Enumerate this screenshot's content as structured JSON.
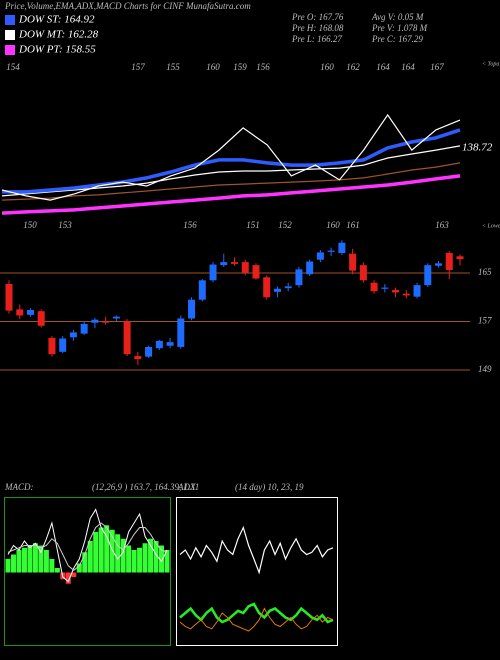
{
  "header": {
    "title": "Price,Volume,EMA,ADX,MACD Charts for CINF MunafaSutra.com",
    "legend": [
      {
        "text": "DOW ST: 164.92",
        "color": "#2f5cff"
      },
      {
        "text": "DOW MT: 162.28",
        "color": "#ffffff"
      },
      {
        "text": "DOW PT: 158.55",
        "color": "#ff33ff"
      }
    ],
    "stats": [
      "Pre   O: 167.76",
      "Avg  V: 0.05  M",
      "Pre   H: 168.08",
      "Pre   V: 1.078  M",
      "Pre   L: 166.27",
      "Pre   C: 167.29"
    ]
  },
  "chart_data": [
    {
      "type": "line",
      "ylim": [
        110,
        175
      ],
      "annotations": [
        "154",
        "157",
        "155",
        "160",
        "159",
        "156",
        "160",
        "162",
        "164",
        "164",
        "167"
      ],
      "corner_label": "< Topa",
      "last_label": "138.72",
      "series": [
        {
          "color": "#ff33ff",
          "width": 3.5,
          "values": [
            112.8,
            113.3,
            113.7,
            114.1,
            114.9,
            115.7,
            116.5,
            117.3,
            118.1,
            118.9,
            119.8,
            120.2,
            121.0,
            121.8,
            122.6,
            123.4,
            124.2,
            125.4,
            126.7,
            127.9
          ]
        },
        {
          "color": "#a0522d",
          "width": 1.2,
          "values": [
            118.1,
            118.5,
            118.9,
            119.8,
            120.2,
            121.0,
            121.8,
            122.6,
            123.4,
            124.2,
            124.6,
            125.0,
            125.4,
            125.8,
            126.3,
            127.1,
            128.7,
            130.3,
            131.5,
            133.2
          ]
        },
        {
          "color": "#ffffff",
          "width": 1.2,
          "values": [
            119.8,
            120.6,
            121.4,
            122.2,
            123.0,
            123.8,
            125.0,
            126.7,
            128.3,
            129.5,
            129.9,
            129.9,
            130.3,
            130.7,
            131.1,
            132.3,
            135.2,
            136.8,
            138.4,
            140.1
          ]
        },
        {
          "color": "#2f5cff",
          "width": 3.5,
          "values": [
            121.4,
            121.4,
            122.2,
            123.0,
            124.2,
            125.4,
            127.1,
            129.5,
            132.3,
            134.4,
            134.4,
            133.2,
            132.3,
            132.3,
            133.2,
            134.4,
            139.3,
            141.7,
            143.4,
            146.6
          ]
        },
        {
          "color": "#ffffff",
          "width": 1.2,
          "values": [
            122.2,
            119.8,
            118.1,
            120.6,
            123.8,
            125.4,
            123.8,
            127.9,
            131.1,
            138.4,
            147.4,
            140.5,
            127.9,
            132.3,
            126.3,
            138.4,
            152.7,
            138.4,
            146.6,
            150.6
          ]
        }
      ]
    },
    {
      "type": "candlestick",
      "ylim": [
        147.35,
        172.1
      ],
      "yticks": [
        165,
        157,
        149
      ],
      "annotations": [
        "150",
        "153",
        "156",
        "151",
        "152",
        "160",
        "161",
        "163"
      ],
      "corner_label": "< Lower",
      "up_color": "#1e6bff",
      "down_color": "#e8201c",
      "grid_color": "#a0522d",
      "open": [
        163.2,
        159.0,
        158.1,
        158.7,
        154.3,
        152.0,
        154.4,
        155.0,
        156.8,
        157.0,
        157.5,
        157.0,
        151.3,
        151.2,
        152.6,
        153.0,
        152.8,
        157.5,
        160.6,
        163.8,
        166.3,
        166.8,
        166.8,
        166.3,
        164.3,
        161.9,
        162.5,
        163.0,
        164.8,
        167.2,
        168.5,
        168.3,
        168.2,
        166.3,
        163.4,
        162.4,
        162.2,
        161.6,
        161.1,
        163.0,
        166.2,
        168.3,
        167.76
      ],
      "high": [
        163.8,
        159.8,
        159.2,
        159.0,
        154.6,
        154.6,
        155.6,
        157.0,
        157.6,
        157.8,
        158.0,
        157.4,
        152.0,
        153.0,
        154.0,
        154.3,
        158.0,
        161.0,
        164.0,
        166.8,
        168.2,
        167.6,
        167.2,
        166.6,
        164.6,
        162.8,
        163.4,
        166.0,
        167.2,
        168.8,
        169.2,
        170.4,
        169.0,
        166.8,
        163.8,
        163.2,
        162.6,
        162.2,
        163.4,
        166.6,
        167.0,
        168.6,
        168.08
      ],
      "low": [
        158.3,
        157.4,
        157.8,
        156.0,
        151.2,
        151.8,
        153.8,
        154.8,
        155.9,
        156.5,
        157.0,
        151.3,
        149.8,
        151.0,
        152.3,
        152.6,
        152.5,
        157.2,
        160.3,
        163.5,
        166.0,
        166.2,
        164.6,
        163.9,
        160.6,
        161.0,
        162.0,
        162.6,
        164.5,
        166.8,
        167.8,
        168.0,
        164.8,
        163.4,
        161.6,
        161.8,
        161.0,
        160.8,
        160.8,
        162.7,
        165.9,
        164.0,
        166.27
      ],
      "close": [
        158.8,
        158.0,
        158.9,
        156.3,
        151.6,
        154.2,
        155.2,
        156.6,
        157.3,
        156.8,
        157.8,
        151.6,
        150.8,
        152.8,
        153.8,
        153.6,
        157.5,
        160.6,
        163.8,
        166.4,
        166.8,
        166.5,
        165.1,
        164.1,
        161.0,
        162.4,
        162.8,
        165.6,
        166.9,
        168.4,
        168.7,
        170.0,
        165.4,
        163.8,
        162.0,
        162.6,
        161.8,
        161.3,
        163.0,
        166.3,
        166.6,
        165.5,
        167.29
      ]
    },
    {
      "type": "macd",
      "label": "MACD:",
      "params": "(12,26,9 ) 163.7, 164.39, 1.31",
      "ylim": [
        -3,
        3
      ],
      "histogram": [
        0.6,
        0.8,
        1.0,
        1.1,
        1.2,
        1.3,
        1.2,
        1.0,
        0.6,
        0.2,
        -0.3,
        -0.5,
        -0.2,
        0.4,
        0.9,
        1.4,
        1.8,
        2.0,
        2.1,
        1.9,
        1.7,
        1.5,
        1.2,
        1.0,
        1.1,
        1.3,
        1.5,
        1.4,
        1.2,
        1.0
      ],
      "series": [
        {
          "color": "#ffffff",
          "values": [
            0.8,
            1.2,
            1.0,
            1.4,
            1.1,
            1.3,
            0.9,
            1.5,
            2.2,
            1.0,
            -0.2,
            -0.4,
            0.2,
            0.6,
            1.4,
            2.4,
            2.8,
            2.0,
            1.6,
            1.0,
            0.6,
            0.9,
            1.8,
            2.2,
            2.6,
            1.6,
            1.2,
            0.8,
            0.5,
            1.0
          ]
        },
        {
          "color": "#cccccc",
          "values": [
            0.9,
            1.0,
            1.1,
            1.2,
            1.2,
            1.2,
            1.1,
            1.2,
            1.5,
            1.3,
            0.8,
            0.3,
            0.1,
            0.3,
            0.8,
            1.5,
            2.0,
            2.2,
            2.0,
            1.6,
            1.2,
            1.0,
            1.3,
            1.7,
            2.0,
            2.0,
            1.7,
            1.3,
            1.0,
            0.9
          ]
        }
      ]
    },
    {
      "type": "line",
      "label": "ADX",
      "params": "(14 day) 10, 23, 19",
      "ylim": [
        0,
        60
      ],
      "series": [
        {
          "color": "#ffffff",
          "width": 1.2,
          "values": [
            38,
            40,
            36,
            41,
            37,
            42,
            39,
            35,
            44,
            40,
            38,
            45,
            50,
            42,
            36,
            30,
            40,
            44,
            38,
            43,
            36,
            41,
            45,
            40,
            38,
            39,
            42,
            37,
            40,
            41
          ]
        },
        {
          "color": "#22ee22",
          "width": 2.5,
          "values": [
            10,
            12,
            14,
            11,
            9,
            12,
            14,
            10,
            8,
            9,
            11,
            13,
            12,
            15,
            16,
            12,
            10,
            13,
            14,
            12,
            10,
            9,
            11,
            14,
            12,
            10,
            9,
            11,
            8,
            9
          ]
        },
        {
          "color": "#e07b00",
          "width": 1,
          "values": [
            8,
            6,
            5,
            7,
            9,
            6,
            5,
            8,
            12,
            10,
            7,
            6,
            5,
            4,
            6,
            9,
            14,
            10,
            7,
            6,
            8,
            10,
            7,
            5,
            6,
            9,
            11,
            8,
            10,
            9
          ]
        }
      ]
    }
  ]
}
